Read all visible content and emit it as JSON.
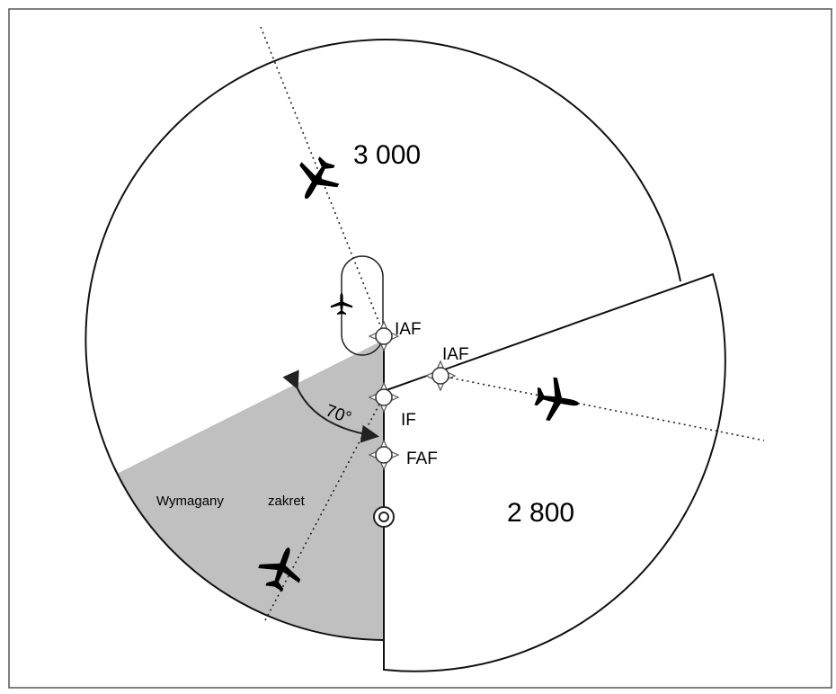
{
  "labels": {
    "sector_north": "3 000",
    "sector_east": "2 800",
    "iaf_1": "IAF",
    "iaf_2": "IAF",
    "if": "IF",
    "faf": "FAF",
    "angle": "70°",
    "turn_1": "Wymagany",
    "turn_2": "zakret"
  }
}
